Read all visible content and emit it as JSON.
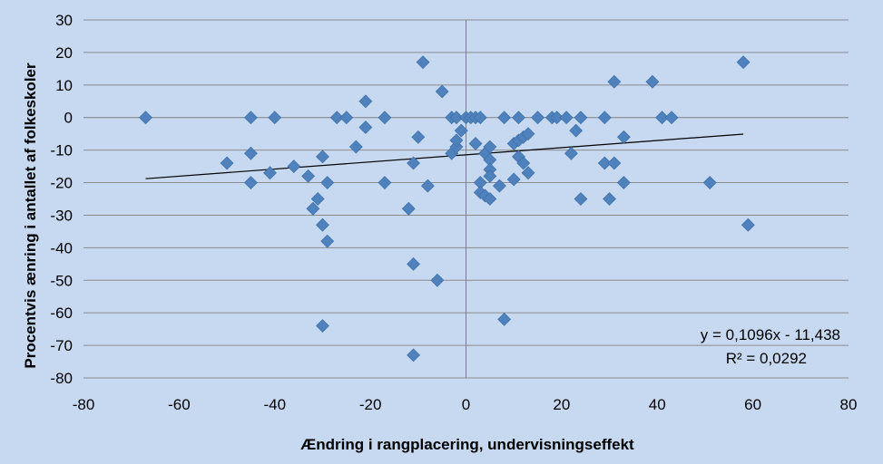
{
  "chart_data": {
    "type": "scatter",
    "xlabel": "Ændring i rangplacering, undervisningseffekt",
    "ylabel": "Procentvis ænring i antallet af folkeskoler",
    "xlim": [
      -80,
      80
    ],
    "ylim": [
      -80,
      30
    ],
    "x_ticks": [
      -80,
      -60,
      -40,
      -20,
      0,
      20,
      40,
      60,
      80
    ],
    "y_ticks": [
      30,
      20,
      10,
      0,
      -10,
      -20,
      -30,
      -40,
      -50,
      -60,
      -70,
      -80
    ],
    "gridlines": "horizontal",
    "marker": "diamond",
    "marker_color": "#4f81bd",
    "background_color": "#c6d9f1",
    "trendline": {
      "slope": 0.1096,
      "intercept": -11.438,
      "x_range": [
        -67,
        58
      ],
      "equation_label": "y = 0,1096x - 11,438",
      "r2_label": "R² = 0,0292"
    },
    "points": [
      [
        -67,
        0
      ],
      [
        -50,
        -14
      ],
      [
        -45,
        0
      ],
      [
        -45,
        -11
      ],
      [
        -45,
        -20
      ],
      [
        -40,
        0
      ],
      [
        -41,
        -17
      ],
      [
        -36,
        -15
      ],
      [
        -33,
        -18
      ],
      [
        -32,
        -28
      ],
      [
        -31,
        -25
      ],
      [
        -30,
        -12
      ],
      [
        -30,
        -33
      ],
      [
        -30,
        -64
      ],
      [
        -29,
        -38
      ],
      [
        -29,
        -20
      ],
      [
        -27,
        0
      ],
      [
        -25,
        0
      ],
      [
        -23,
        -9
      ],
      [
        -21,
        5
      ],
      [
        -21,
        -3
      ],
      [
        -17,
        0
      ],
      [
        -17,
        -20
      ],
      [
        -12,
        -28
      ],
      [
        -11,
        -14
      ],
      [
        -11,
        -45
      ],
      [
        -11,
        -73
      ],
      [
        -10,
        -6
      ],
      [
        -9,
        17
      ],
      [
        -8,
        -21
      ],
      [
        -6,
        -50
      ],
      [
        -5,
        8
      ],
      [
        -3,
        0
      ],
      [
        -3,
        -11
      ],
      [
        -2,
        0
      ],
      [
        -2,
        -9
      ],
      [
        -2,
        -7
      ],
      [
        -1,
        -4
      ],
      [
        0,
        0
      ],
      [
        1,
        0
      ],
      [
        2,
        0
      ],
      [
        2,
        -8
      ],
      [
        3,
        0
      ],
      [
        3,
        -20
      ],
      [
        3,
        -23
      ],
      [
        4,
        -11
      ],
      [
        4,
        -24
      ],
      [
        5,
        -9
      ],
      [
        5,
        -13
      ],
      [
        5,
        -16
      ],
      [
        5,
        -18
      ],
      [
        5,
        -25
      ],
      [
        7,
        -21
      ],
      [
        8,
        0
      ],
      [
        8,
        -62
      ],
      [
        10,
        -8
      ],
      [
        10,
        -19
      ],
      [
        11,
        0
      ],
      [
        11,
        -7
      ],
      [
        11,
        -12
      ],
      [
        12,
        -14
      ],
      [
        12,
        -6
      ],
      [
        13,
        -5
      ],
      [
        13,
        -17
      ],
      [
        15,
        0
      ],
      [
        18,
        0
      ],
      [
        19,
        0
      ],
      [
        21,
        0
      ],
      [
        22,
        -11
      ],
      [
        23,
        -4
      ],
      [
        24,
        0
      ],
      [
        24,
        -25
      ],
      [
        29,
        0
      ],
      [
        29,
        -14
      ],
      [
        30,
        -25
      ],
      [
        31,
        11
      ],
      [
        31,
        -14
      ],
      [
        33,
        -6
      ],
      [
        33,
        -20
      ],
      [
        39,
        11
      ],
      [
        41,
        0
      ],
      [
        43,
        0
      ],
      [
        51,
        -20
      ],
      [
        58,
        17
      ],
      [
        59,
        -33
      ]
    ]
  }
}
